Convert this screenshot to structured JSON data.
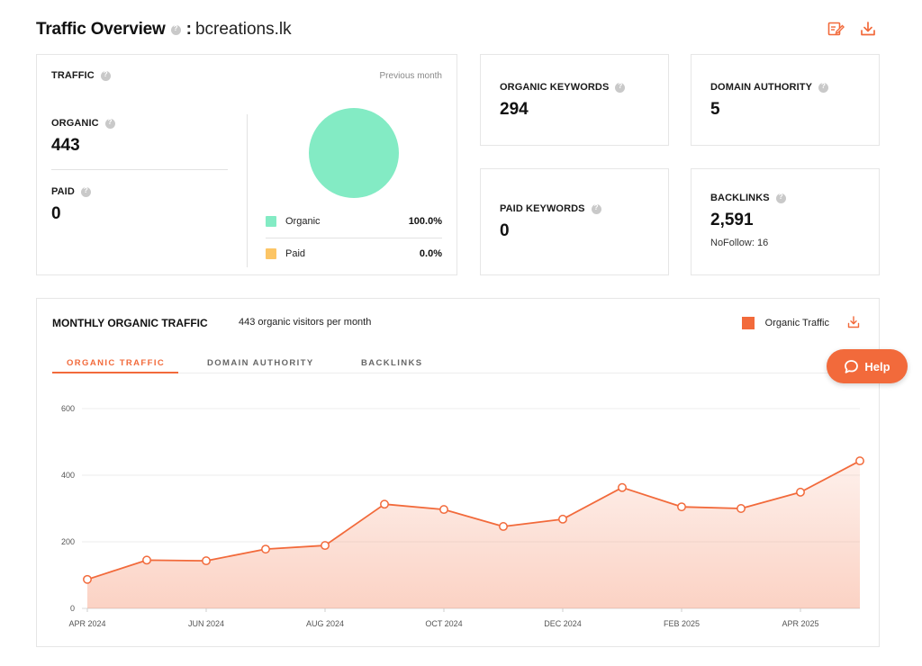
{
  "header": {
    "title": "Traffic Overview",
    "colon": ":",
    "domain": "bcreations.lk"
  },
  "traffic": {
    "label": "TRAFFIC",
    "period": "Previous month",
    "organic_label": "ORGANIC",
    "organic_value": "443",
    "paid_label": "PAID",
    "paid_value": "0",
    "legend": [
      {
        "name": "Organic",
        "value": "100.0%",
        "color": "#83ebc4"
      },
      {
        "name": "Paid",
        "value": "0.0%",
        "color": "#fcc565"
      }
    ]
  },
  "stats": {
    "organic_keywords": {
      "label": "ORGANIC KEYWORDS",
      "value": "294"
    },
    "domain_authority": {
      "label": "DOMAIN AUTHORITY",
      "value": "5"
    },
    "paid_keywords": {
      "label": "PAID KEYWORDS",
      "value": "0"
    },
    "backlinks": {
      "label": "BACKLINKS",
      "value": "2,591",
      "nofollow": "NoFollow: 16"
    }
  },
  "monthly": {
    "title": "MONTHLY ORGANIC TRAFFIC",
    "subtitle": "443 organic visitors per month",
    "legend": "Organic Traffic",
    "tabs": [
      "ORGANIC TRAFFIC",
      "DOMAIN AUTHORITY",
      "BACKLINKS"
    ]
  },
  "help": {
    "label": "Help"
  },
  "colors": {
    "accent": "#f26a3b",
    "organic": "#83ebc4",
    "paid": "#fcc565"
  },
  "chart_data": {
    "type": "area",
    "title": "MONTHLY ORGANIC TRAFFIC",
    "x": [
      "APR 2024",
      "MAY 2024",
      "JUN 2024",
      "JUL 2024",
      "AUG 2024",
      "SEP 2024",
      "OCT 2024",
      "NOV 2024",
      "DEC 2024",
      "JAN 2025",
      "FEB 2025",
      "MAR 2025",
      "APR 2025",
      "MAY 2025"
    ],
    "x_tick_labels": [
      "APR 2024",
      "JUN 2024",
      "AUG 2024",
      "OCT 2024",
      "DEC 2024",
      "FEB 2025",
      "APR 2025"
    ],
    "series": [
      {
        "name": "Organic Traffic",
        "values": [
          87,
          145,
          143,
          178,
          189,
          313,
          297,
          246,
          268,
          363,
          305,
          300,
          349,
          443
        ]
      }
    ],
    "y_ticks": [
      0,
      200,
      400,
      600
    ],
    "ylim": [
      0,
      600
    ],
    "grid": true,
    "legend_position": "top-right"
  }
}
